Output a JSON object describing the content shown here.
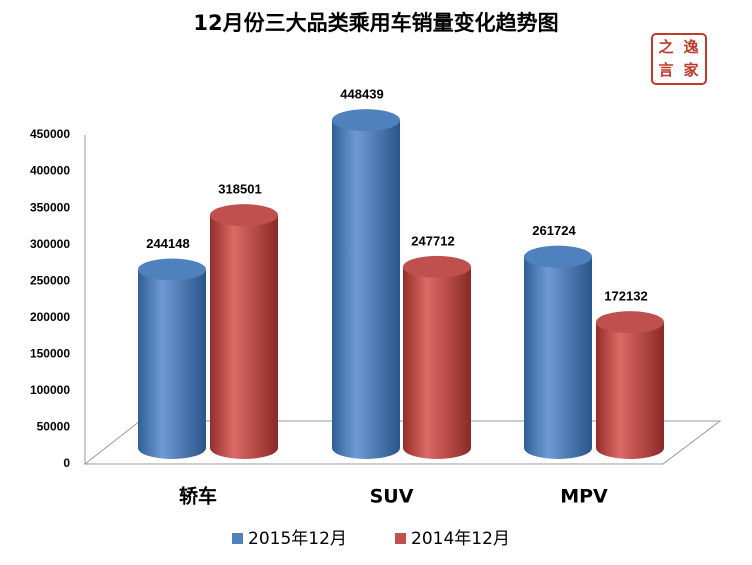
{
  "chart_data": {
    "type": "bar3d",
    "title": "12月份三大品类乘用车销量变化趋势图",
    "categories": [
      "轿车",
      "SUV",
      "MPV"
    ],
    "series": [
      {
        "name": "2015年12月",
        "color": "#4f81bd",
        "values": [
          244148,
          448439,
          261724
        ]
      },
      {
        "name": "2014年12月",
        "color": "#c0504d",
        "values": [
          318501,
          247712,
          172132
        ]
      }
    ],
    "ylim": [
      0,
      450000
    ],
    "yticks": [
      0,
      50000,
      100000,
      150000,
      200000,
      250000,
      300000,
      350000,
      400000,
      450000
    ],
    "legend": "bottom"
  },
  "logo": {
    "chars": [
      "之",
      "逸",
      "言",
      "家"
    ]
  }
}
